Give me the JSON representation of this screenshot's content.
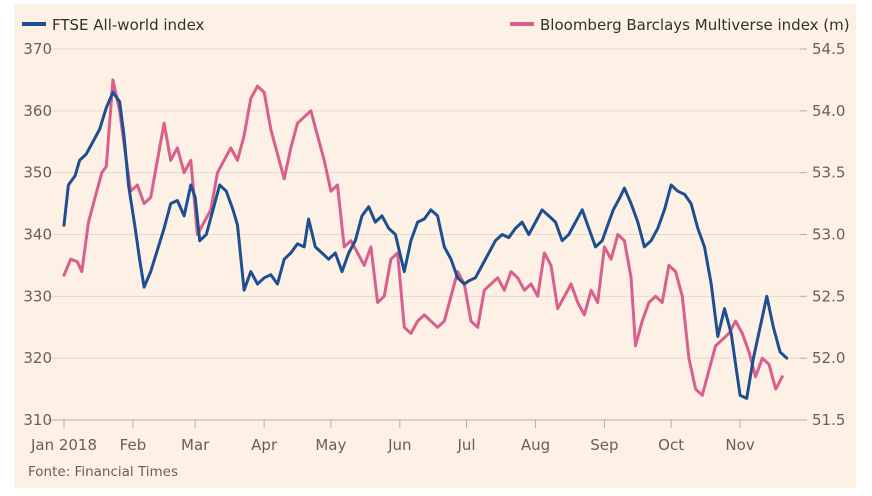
{
  "chart_data": {
    "type": "line",
    "source": "Fonte: Financial Times",
    "x_ticks": [
      "Jan 2018",
      "Feb",
      "Mar",
      "Apr",
      "May",
      "Jun",
      "Jul",
      "Aug",
      "Sep",
      "Oct",
      "Nov"
    ],
    "xlim": [
      "2018-01-01",
      "2018-11-23"
    ],
    "y_left": {
      "ticks": [
        310,
        320,
        330,
        340,
        350,
        360,
        370
      ],
      "lim": [
        310,
        370
      ]
    },
    "y_right": {
      "ticks": [
        "51.5",
        "52.0",
        "52.5",
        "53.0",
        "53.5",
        "54.0",
        "54.5"
      ],
      "lim": [
        51.5,
        54.5
      ]
    },
    "grid": true,
    "legend_position": "top",
    "series": [
      {
        "name": "FTSE All-world index",
        "color": "#1d4f91",
        "axis": "left",
        "data": [
          [
            "2018-01-01",
            341.5
          ],
          [
            "2018-01-03",
            348
          ],
          [
            "2018-01-06",
            349.5
          ],
          [
            "2018-01-08",
            352
          ],
          [
            "2018-01-11",
            353
          ],
          [
            "2018-01-14",
            355
          ],
          [
            "2018-01-17",
            357
          ],
          [
            "2018-01-20",
            360.5
          ],
          [
            "2018-01-23",
            363
          ],
          [
            "2018-01-26",
            361.5
          ],
          [
            "2018-01-28",
            356
          ],
          [
            "2018-01-30",
            348
          ],
          [
            "2018-02-02",
            341
          ],
          [
            "2018-02-04",
            336
          ],
          [
            "2018-02-06",
            331.5
          ],
          [
            "2018-02-09",
            334
          ],
          [
            "2018-02-12",
            337.5
          ],
          [
            "2018-02-15",
            341
          ],
          [
            "2018-02-18",
            345
          ],
          [
            "2018-02-21",
            345.5
          ],
          [
            "2018-02-24",
            343
          ],
          [
            "2018-02-27",
            348
          ],
          [
            "2018-03-01",
            346
          ],
          [
            "2018-03-03",
            339
          ],
          [
            "2018-03-06",
            340
          ],
          [
            "2018-03-09",
            344
          ],
          [
            "2018-03-12",
            348
          ],
          [
            "2018-03-15",
            347
          ],
          [
            "2018-03-18",
            344
          ],
          [
            "2018-03-20",
            341.5
          ],
          [
            "2018-03-23",
            331
          ],
          [
            "2018-03-26",
            334
          ],
          [
            "2018-03-29",
            332
          ],
          [
            "2018-04-01",
            333
          ],
          [
            "2018-04-04",
            333.5
          ],
          [
            "2018-04-07",
            332
          ],
          [
            "2018-04-10",
            336
          ],
          [
            "2018-04-13",
            337
          ],
          [
            "2018-04-16",
            338.5
          ],
          [
            "2018-04-19",
            338
          ],
          [
            "2018-04-21",
            342.5
          ],
          [
            "2018-04-24",
            338
          ],
          [
            "2018-04-27",
            337
          ],
          [
            "2018-04-30",
            336
          ],
          [
            "2018-05-03",
            337
          ],
          [
            "2018-05-06",
            334
          ],
          [
            "2018-05-09",
            337
          ],
          [
            "2018-05-12",
            339
          ],
          [
            "2018-05-15",
            343
          ],
          [
            "2018-05-18",
            344.5
          ],
          [
            "2018-05-21",
            342
          ],
          [
            "2018-05-24",
            343
          ],
          [
            "2018-05-27",
            341
          ],
          [
            "2018-05-30",
            340
          ],
          [
            "2018-06-01",
            337
          ],
          [
            "2018-06-03",
            334
          ],
          [
            "2018-06-06",
            339
          ],
          [
            "2018-06-09",
            342
          ],
          [
            "2018-06-12",
            342.5
          ],
          [
            "2018-06-15",
            344
          ],
          [
            "2018-06-18",
            343
          ],
          [
            "2018-06-21",
            338
          ],
          [
            "2018-06-24",
            336
          ],
          [
            "2018-06-27",
            333
          ],
          [
            "2018-06-30",
            332
          ],
          [
            "2018-07-02",
            332.5
          ],
          [
            "2018-07-05",
            333
          ],
          [
            "2018-07-08",
            335
          ],
          [
            "2018-07-11",
            337
          ],
          [
            "2018-07-14",
            339
          ],
          [
            "2018-07-17",
            340
          ],
          [
            "2018-07-20",
            339.5
          ],
          [
            "2018-07-23",
            341
          ],
          [
            "2018-07-26",
            342
          ],
          [
            "2018-07-29",
            340
          ],
          [
            "2018-08-01",
            342
          ],
          [
            "2018-08-04",
            344
          ],
          [
            "2018-08-07",
            343
          ],
          [
            "2018-08-10",
            342
          ],
          [
            "2018-08-13",
            339
          ],
          [
            "2018-08-16",
            340
          ],
          [
            "2018-08-19",
            342
          ],
          [
            "2018-08-22",
            344
          ],
          [
            "2018-08-25",
            341
          ],
          [
            "2018-08-28",
            338
          ],
          [
            "2018-08-31",
            339
          ],
          [
            "2018-09-02",
            341
          ],
          [
            "2018-09-05",
            344
          ],
          [
            "2018-09-08",
            346
          ],
          [
            "2018-09-10",
            347.5
          ],
          [
            "2018-09-13",
            345
          ],
          [
            "2018-09-16",
            342
          ],
          [
            "2018-09-19",
            338
          ],
          [
            "2018-09-22",
            339
          ],
          [
            "2018-09-25",
            341
          ],
          [
            "2018-09-28",
            344
          ],
          [
            "2018-10-01",
            348
          ],
          [
            "2018-10-04",
            347
          ],
          [
            "2018-10-07",
            346.5
          ],
          [
            "2018-10-10",
            345
          ],
          [
            "2018-10-13",
            341
          ],
          [
            "2018-10-16",
            338
          ],
          [
            "2018-10-19",
            332
          ],
          [
            "2018-10-22",
            323.5
          ],
          [
            "2018-10-25",
            328
          ],
          [
            "2018-10-28",
            324
          ],
          [
            "2018-10-30",
            319
          ],
          [
            "2018-11-01",
            314
          ],
          [
            "2018-11-04",
            313.5
          ],
          [
            "2018-11-07",
            320
          ],
          [
            "2018-11-10",
            325
          ],
          [
            "2018-11-13",
            330
          ],
          [
            "2018-11-16",
            325
          ],
          [
            "2018-11-19",
            321
          ],
          [
            "2018-11-22",
            320
          ]
        ]
      },
      {
        "name": "Bloomberg Barclays Multiverse index (m)",
        "color": "#d95f8d",
        "axis": "right",
        "data": [
          [
            "2018-01-01",
            52.67
          ],
          [
            "2018-01-04",
            52.8
          ],
          [
            "2018-01-07",
            52.78
          ],
          [
            "2018-01-09",
            52.7
          ],
          [
            "2018-01-12",
            53.1
          ],
          [
            "2018-01-15",
            53.3
          ],
          [
            "2018-01-18",
            53.5
          ],
          [
            "2018-01-20",
            53.55
          ],
          [
            "2018-01-23",
            54.25
          ],
          [
            "2018-01-26",
            54.0
          ],
          [
            "2018-01-29",
            53.6
          ],
          [
            "2018-01-31",
            53.35
          ],
          [
            "2018-02-03",
            53.4
          ],
          [
            "2018-02-06",
            53.25
          ],
          [
            "2018-02-09",
            53.3
          ],
          [
            "2018-02-12",
            53.6
          ],
          [
            "2018-02-15",
            53.9
          ],
          [
            "2018-02-18",
            53.6
          ],
          [
            "2018-02-21",
            53.7
          ],
          [
            "2018-02-24",
            53.5
          ],
          [
            "2018-02-27",
            53.6
          ],
          [
            "2018-03-02",
            53.0
          ],
          [
            "2018-03-05",
            53.1
          ],
          [
            "2018-03-08",
            53.2
          ],
          [
            "2018-03-11",
            53.5
          ],
          [
            "2018-03-14",
            53.6
          ],
          [
            "2018-03-17",
            53.7
          ],
          [
            "2018-03-20",
            53.6
          ],
          [
            "2018-03-23",
            53.8
          ],
          [
            "2018-03-26",
            54.1
          ],
          [
            "2018-03-29",
            54.2
          ],
          [
            "2018-04-01",
            54.15
          ],
          [
            "2018-04-04",
            53.85
          ],
          [
            "2018-04-07",
            53.65
          ],
          [
            "2018-04-10",
            53.45
          ],
          [
            "2018-04-13",
            53.7
          ],
          [
            "2018-04-16",
            53.9
          ],
          [
            "2018-04-19",
            53.95
          ],
          [
            "2018-04-22",
            54.0
          ],
          [
            "2018-04-25",
            53.8
          ],
          [
            "2018-04-28",
            53.6
          ],
          [
            "2018-05-01",
            53.35
          ],
          [
            "2018-05-04",
            53.4
          ],
          [
            "2018-05-07",
            52.9
          ],
          [
            "2018-05-10",
            52.95
          ],
          [
            "2018-05-13",
            52.85
          ],
          [
            "2018-05-16",
            52.75
          ],
          [
            "2018-05-19",
            52.9
          ],
          [
            "2018-05-22",
            52.45
          ],
          [
            "2018-05-25",
            52.5
          ],
          [
            "2018-05-28",
            52.8
          ],
          [
            "2018-05-31",
            52.85
          ],
          [
            "2018-06-03",
            52.25
          ],
          [
            "2018-06-06",
            52.2
          ],
          [
            "2018-06-09",
            52.3
          ],
          [
            "2018-06-12",
            52.35
          ],
          [
            "2018-06-15",
            52.3
          ],
          [
            "2018-06-18",
            52.25
          ],
          [
            "2018-06-21",
            52.3
          ],
          [
            "2018-06-24",
            52.5
          ],
          [
            "2018-06-27",
            52.7
          ],
          [
            "2018-06-30",
            52.6
          ],
          [
            "2018-07-03",
            52.3
          ],
          [
            "2018-07-06",
            52.25
          ],
          [
            "2018-07-09",
            52.55
          ],
          [
            "2018-07-12",
            52.6
          ],
          [
            "2018-07-15",
            52.65
          ],
          [
            "2018-07-18",
            52.55
          ],
          [
            "2018-07-21",
            52.7
          ],
          [
            "2018-07-24",
            52.65
          ],
          [
            "2018-07-27",
            52.55
          ],
          [
            "2018-07-30",
            52.6
          ],
          [
            "2018-08-02",
            52.5
          ],
          [
            "2018-08-05",
            52.85
          ],
          [
            "2018-08-08",
            52.75
          ],
          [
            "2018-08-11",
            52.4
          ],
          [
            "2018-08-14",
            52.5
          ],
          [
            "2018-08-17",
            52.6
          ],
          [
            "2018-08-20",
            52.45
          ],
          [
            "2018-08-23",
            52.35
          ],
          [
            "2018-08-26",
            52.55
          ],
          [
            "2018-08-29",
            52.45
          ],
          [
            "2018-09-01",
            52.9
          ],
          [
            "2018-09-04",
            52.8
          ],
          [
            "2018-09-07",
            53.0
          ],
          [
            "2018-09-10",
            52.95
          ],
          [
            "2018-09-13",
            52.65
          ],
          [
            "2018-09-15",
            52.1
          ],
          [
            "2018-09-18",
            52.3
          ],
          [
            "2018-09-21",
            52.45
          ],
          [
            "2018-09-24",
            52.5
          ],
          [
            "2018-09-27",
            52.45
          ],
          [
            "2018-09-30",
            52.75
          ],
          [
            "2018-10-03",
            52.7
          ],
          [
            "2018-10-06",
            52.5
          ],
          [
            "2018-10-09",
            52.0
          ],
          [
            "2018-10-12",
            51.75
          ],
          [
            "2018-10-15",
            51.7
          ],
          [
            "2018-10-18",
            51.9
          ],
          [
            "2018-10-21",
            52.1
          ],
          [
            "2018-10-24",
            52.15
          ],
          [
            "2018-10-27",
            52.2
          ],
          [
            "2018-10-30",
            52.3
          ],
          [
            "2018-11-02",
            52.2
          ],
          [
            "2018-11-05",
            52.05
          ],
          [
            "2018-11-08",
            51.85
          ],
          [
            "2018-11-11",
            52.0
          ],
          [
            "2018-11-14",
            51.95
          ],
          [
            "2018-11-17",
            51.75
          ],
          [
            "2018-11-20",
            51.85
          ]
        ]
      }
    ]
  }
}
